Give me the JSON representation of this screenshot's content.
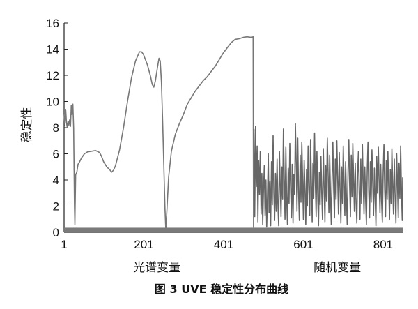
{
  "chart_data": {
    "type": "line",
    "title": "",
    "caption": "图 3   UVE 稳定性分布曲线",
    "ylabel": "稳定性",
    "xlabel_segments": [
      {
        "label": "光谱变量",
        "range": [
          1,
          501
        ]
      },
      {
        "label": "随机变量",
        "range": [
          501,
          850
        ]
      }
    ],
    "xlim": [
      1,
      850
    ],
    "ylim": [
      0,
      16
    ],
    "xticks": [
      1,
      201,
      401,
      601,
      801
    ],
    "yticks": [
      0,
      2,
      4,
      6,
      8,
      10,
      12,
      14,
      16
    ],
    "grid": false,
    "series": [
      {
        "name": "",
        "segment": "spectral",
        "color": "#777777",
        "points": [
          [
            1,
            9.0
          ],
          [
            3,
            8.2
          ],
          [
            5,
            9.4
          ],
          [
            7,
            8.4
          ],
          [
            9,
            8.0
          ],
          [
            11,
            8.5
          ],
          [
            13,
            8.2
          ],
          [
            15,
            8.6
          ],
          [
            17,
            8.1
          ],
          [
            19,
            9.7
          ],
          [
            21,
            9.0
          ],
          [
            23,
            9.8
          ],
          [
            25,
            8.0
          ],
          [
            27,
            2.0
          ],
          [
            28,
            0.6
          ],
          [
            30,
            4.4
          ],
          [
            33,
            4.6
          ],
          [
            36,
            5.2
          ],
          [
            40,
            5.4
          ],
          [
            45,
            5.7
          ],
          [
            52,
            6.0
          ],
          [
            60,
            6.15
          ],
          [
            70,
            6.2
          ],
          [
            80,
            6.25
          ],
          [
            90,
            6.1
          ],
          [
            95,
            5.8
          ],
          [
            100,
            5.4
          ],
          [
            108,
            5.0
          ],
          [
            115,
            4.8
          ],
          [
            120,
            4.6
          ],
          [
            125,
            4.75
          ],
          [
            130,
            5.1
          ],
          [
            140,
            6.3
          ],
          [
            150,
            8.0
          ],
          [
            160,
            10.0
          ],
          [
            170,
            11.8
          ],
          [
            180,
            13.1
          ],
          [
            190,
            13.8
          ],
          [
            195,
            13.8
          ],
          [
            200,
            13.6
          ],
          [
            210,
            12.8
          ],
          [
            218,
            11.9
          ],
          [
            222,
            11.3
          ],
          [
            226,
            11.1
          ],
          [
            230,
            11.6
          ],
          [
            235,
            12.6
          ],
          [
            239,
            13.3
          ],
          [
            242,
            13.1
          ],
          [
            245,
            11.5
          ],
          [
            248,
            8.6
          ],
          [
            251,
            5.2
          ],
          [
            254,
            1.8
          ],
          [
            256,
            0.2
          ],
          [
            259,
            1.8
          ],
          [
            263,
            4.2
          ],
          [
            270,
            6.2
          ],
          [
            280,
            7.5
          ],
          [
            290,
            8.3
          ],
          [
            300,
            9.0
          ],
          [
            310,
            9.8
          ],
          [
            320,
            10.3
          ],
          [
            330,
            10.8
          ],
          [
            340,
            11.2
          ],
          [
            350,
            11.6
          ],
          [
            360,
            11.9
          ],
          [
            370,
            12.3
          ],
          [
            380,
            12.7
          ],
          [
            390,
            13.2
          ],
          [
            400,
            13.7
          ],
          [
            410,
            14.1
          ],
          [
            420,
            14.5
          ],
          [
            430,
            14.75
          ],
          [
            440,
            14.8
          ],
          [
            450,
            14.9
          ],
          [
            460,
            14.95
          ],
          [
            470,
            14.9
          ],
          [
            475,
            14.95
          ],
          [
            476,
            0.35
          ]
        ]
      },
      {
        "name": "",
        "segment": "random",
        "color": "#666666",
        "points": [
          [
            477,
            7.9
          ],
          [
            479,
            1.2
          ],
          [
            481,
            8.1
          ],
          [
            483,
            3.5
          ],
          [
            485,
            6.6
          ],
          [
            487,
            0.8
          ],
          [
            489,
            5.5
          ],
          [
            491,
            2.9
          ],
          [
            493,
            6.2
          ],
          [
            495,
            1.4
          ],
          [
            497,
            4.5
          ],
          [
            499,
            0.6
          ],
          [
            501,
            3.2
          ],
          [
            503,
            5.1
          ],
          [
            505,
            1.3
          ],
          [
            507,
            4.0
          ],
          [
            509,
            0.4
          ],
          [
            511,
            2.6
          ],
          [
            513,
            6.0
          ],
          [
            515,
            1.5
          ],
          [
            517,
            3.9
          ],
          [
            519,
            0.5
          ],
          [
            521,
            5.4
          ],
          [
            523,
            2.1
          ],
          [
            525,
            7.4
          ],
          [
            527,
            3.0
          ],
          [
            529,
            0.9
          ],
          [
            531,
            4.5
          ],
          [
            533,
            1.6
          ],
          [
            535,
            5.6
          ],
          [
            537,
            2.3
          ],
          [
            539,
            0.5
          ],
          [
            541,
            6.2
          ],
          [
            543,
            3.4
          ],
          [
            545,
            1.2
          ],
          [
            547,
            5.0
          ],
          [
            549,
            2.5
          ],
          [
            551,
            7.9
          ],
          [
            553,
            4.1
          ],
          [
            555,
            1.0
          ],
          [
            557,
            6.5
          ],
          [
            559,
            2.8
          ],
          [
            561,
            0.6
          ],
          [
            563,
            4.9
          ],
          [
            565,
            2.2
          ],
          [
            567,
            6.8
          ],
          [
            569,
            3.6
          ],
          [
            571,
            1.1
          ],
          [
            573,
            5.2
          ],
          [
            575,
            0.7
          ],
          [
            577,
            4.4
          ],
          [
            579,
            2.9
          ],
          [
            581,
            8.3
          ],
          [
            583,
            5.3
          ],
          [
            585,
            1.6
          ],
          [
            587,
            7.2
          ],
          [
            589,
            3.0
          ],
          [
            591,
            0.9
          ],
          [
            593,
            5.9
          ],
          [
            595,
            2.3
          ],
          [
            597,
            6.9
          ],
          [
            599,
            4.2
          ],
          [
            601,
            1.0
          ],
          [
            603,
            5.5
          ],
          [
            605,
            3.1
          ],
          [
            607,
            0.6
          ],
          [
            609,
            4.8
          ],
          [
            611,
            2.0
          ],
          [
            613,
            6.6
          ],
          [
            615,
            3.3
          ],
          [
            617,
            1.3
          ],
          [
            619,
            7.1
          ],
          [
            621,
            4.0
          ],
          [
            623,
            0.8
          ],
          [
            625,
            5.3
          ],
          [
            627,
            2.6
          ],
          [
            629,
            7.6
          ],
          [
            631,
            3.9
          ],
          [
            633,
            1.2
          ],
          [
            635,
            6.2
          ],
          [
            637,
            2.7
          ],
          [
            639,
            0.5
          ],
          [
            641,
            4.6
          ],
          [
            643,
            2.1
          ],
          [
            645,
            5.8
          ],
          [
            647,
            3.0
          ],
          [
            649,
            1.0
          ],
          [
            651,
            6.4
          ],
          [
            653,
            3.5
          ],
          [
            655,
            0.8
          ],
          [
            657,
            5.1
          ],
          [
            659,
            2.4
          ],
          [
            661,
            7.2
          ],
          [
            663,
            4.4
          ],
          [
            665,
            1.5
          ],
          [
            667,
            5.9
          ],
          [
            669,
            2.8
          ],
          [
            671,
            0.6
          ],
          [
            673,
            4.3
          ],
          [
            675,
            6.9
          ],
          [
            677,
            3.2
          ],
          [
            679,
            1.1
          ],
          [
            681,
            5.6
          ],
          [
            683,
            2.5
          ],
          [
            685,
            7.0
          ],
          [
            687,
            4.1
          ],
          [
            689,
            1.4
          ],
          [
            691,
            6.1
          ],
          [
            693,
            3.3
          ],
          [
            695,
            0.7
          ],
          [
            697,
            5.0
          ],
          [
            699,
            2.2
          ],
          [
            701,
            6.6
          ],
          [
            703,
            3.7
          ],
          [
            705,
            1.3
          ],
          [
            707,
            5.4
          ],
          [
            709,
            2.6
          ],
          [
            711,
            0.6
          ],
          [
            713,
            4.8
          ],
          [
            715,
            7.1
          ],
          [
            717,
            3.5
          ],
          [
            719,
            1.2
          ],
          [
            721,
            5.9
          ],
          [
            723,
            2.7
          ],
          [
            725,
            6.8
          ],
          [
            727,
            4.0
          ],
          [
            729,
            1.6
          ],
          [
            731,
            5.3
          ],
          [
            733,
            2.4
          ],
          [
            735,
            0.7
          ],
          [
            737,
            4.5
          ],
          [
            739,
            6.2
          ],
          [
            741,
            3.1
          ],
          [
            743,
            1.0
          ],
          [
            745,
            5.6
          ],
          [
            747,
            2.2
          ],
          [
            749,
            6.7
          ],
          [
            751,
            3.8
          ],
          [
            753,
            1.4
          ],
          [
            755,
            5.0
          ],
          [
            757,
            2.5
          ],
          [
            759,
            0.6
          ],
          [
            761,
            4.7
          ],
          [
            763,
            6.9
          ],
          [
            765,
            3.2
          ],
          [
            767,
            1.1
          ],
          [
            769,
            5.4
          ],
          [
            771,
            2.3
          ],
          [
            773,
            6.3
          ],
          [
            775,
            3.6
          ],
          [
            777,
            1.3
          ],
          [
            779,
            4.9
          ],
          [
            781,
            2.6
          ],
          [
            783,
            0.5
          ],
          [
            785,
            5.8
          ],
          [
            787,
            3.0
          ],
          [
            789,
            6.5
          ],
          [
            791,
            3.9
          ],
          [
            793,
            1.5
          ],
          [
            795,
            5.2
          ],
          [
            797,
            2.4
          ],
          [
            799,
            0.8
          ],
          [
            801,
            4.6
          ],
          [
            803,
            6.7
          ],
          [
            805,
            3.3
          ],
          [
            807,
            1.2
          ],
          [
            809,
            5.5
          ],
          [
            811,
            2.5
          ],
          [
            813,
            6.2
          ],
          [
            815,
            3.4
          ],
          [
            817,
            1.0
          ],
          [
            819,
            4.8
          ],
          [
            821,
            2.2
          ],
          [
            823,
            6.4
          ],
          [
            825,
            3.7
          ],
          [
            827,
            1.4
          ],
          [
            829,
            5.6
          ],
          [
            831,
            2.8
          ],
          [
            833,
            0.7
          ],
          [
            835,
            6.0
          ],
          [
            837,
            3.5
          ],
          [
            839,
            1.1
          ],
          [
            841,
            5.3
          ],
          [
            843,
            2.6
          ],
          [
            845,
            6.6
          ],
          [
            847,
            3.0
          ],
          [
            849,
            0.9
          ],
          [
            850,
            4.2
          ]
        ]
      }
    ]
  }
}
